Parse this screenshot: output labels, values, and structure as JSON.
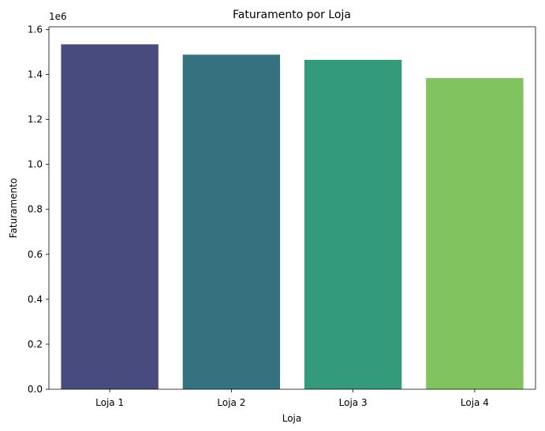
{
  "chart_data": {
    "type": "bar",
    "title": "Faturamento por Loja",
    "xlabel": "Loja",
    "ylabel": "Faturamento",
    "offset_label": "1e6",
    "categories": [
      "Loja 1",
      "Loja 2",
      "Loja 3",
      "Loja 4"
    ],
    "values": [
      1534000,
      1488000,
      1465000,
      1384000
    ],
    "colors": [
      "#484b7e",
      "#35727f",
      "#339a7c",
      "#81c45f"
    ],
    "ylim": [
      0,
      1612000
    ],
    "yticks": [
      0,
      200000,
      400000,
      600000,
      800000,
      1000000,
      1200000,
      1400000,
      1600000
    ],
    "ytick_labels": [
      "0.0",
      "0.2",
      "0.4",
      "0.6",
      "0.8",
      "1.0",
      "1.2",
      "1.4",
      "1.6"
    ],
    "grid": false,
    "legend": "none"
  }
}
